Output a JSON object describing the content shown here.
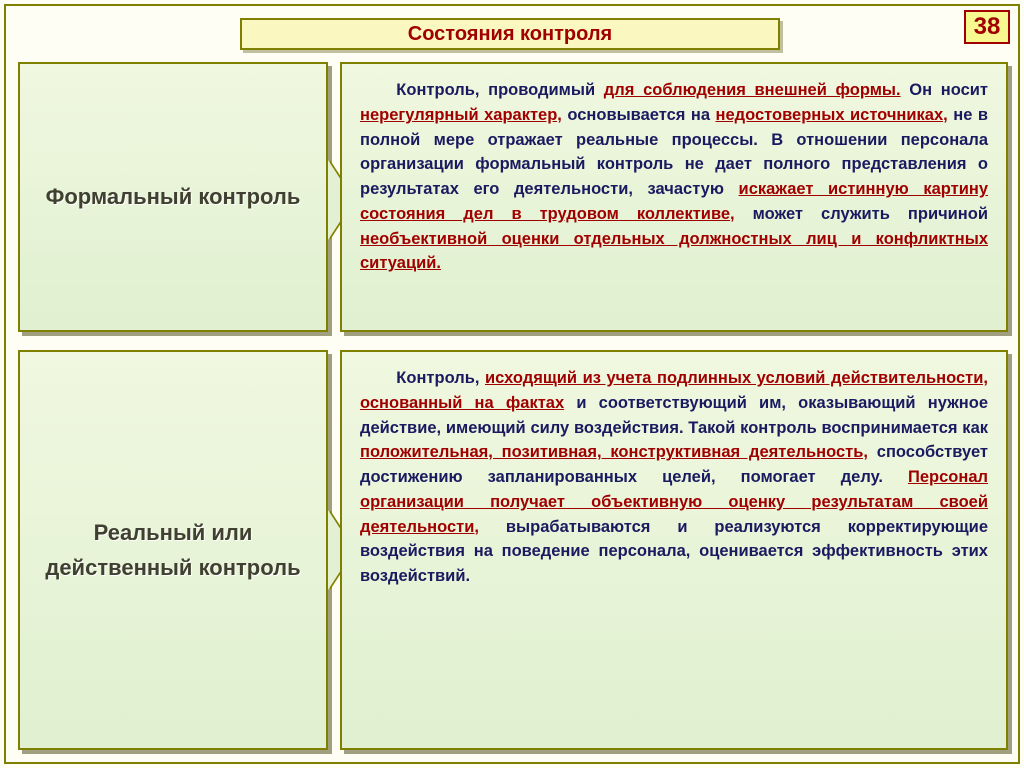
{
  "page_number": "38",
  "title": "Состояния контроля",
  "palette": {
    "background": "#fffef5",
    "border": "#808000",
    "accent_red": "#a00000",
    "body_text": "#1a1a60",
    "box_fill_light": "#f0f8e0",
    "box_fill_dark": "#e0f0d0",
    "title_fill": "#faf8c0",
    "shadow": "#a0a080"
  },
  "typography": {
    "title_fontsize": 20,
    "label_fontsize": 22,
    "body_fontsize": 16.5,
    "page_num_fontsize": 24,
    "font_family": "Arial"
  },
  "sections": [
    {
      "label": "Формальный контроль",
      "text_segments": [
        {
          "t": "Контроль, проводимый ",
          "hl": false
        },
        {
          "t": "для соблюдения внешней формы.",
          "hl": true
        },
        {
          "t": " Он носит ",
          "hl": false
        },
        {
          "t": "нерегулярный характер,",
          "hl": true
        },
        {
          "t": " основывается на ",
          "hl": false
        },
        {
          "t": "недостоверных источниках,",
          "hl": true
        },
        {
          "t": " не в полной мере отражает реальные процессы. В отношении персонала организации формальный контроль не дает полного представления о результатах его деятельности, зачастую ",
          "hl": false
        },
        {
          "t": "искажает истинную картину состояния дел в трудовом коллективе,",
          "hl": true
        },
        {
          "t": " может служить причиной ",
          "hl": false
        },
        {
          "t": "необъективной оценки отдельных должностных лиц и конфликтных ситуаций.",
          "hl": true
        }
      ],
      "indent": true
    },
    {
      "label": "Реальный или действенный контроль",
      "text_segments": [
        {
          "t": "Контроль, ",
          "hl": false
        },
        {
          "t": "исходящий из учета подлинных условий действительности, основанный на фактах",
          "hl": true
        },
        {
          "t": " и соответствующий им, оказывающий нужное действие, имеющий силу воздействия. Такой контроль воспринимается как ",
          "hl": false
        },
        {
          "t": "положительная, позитивная, конструктивная деятельность,",
          "hl": true
        },
        {
          "t": " способствует достижению запланированных целей, помогает делу. ",
          "hl": false
        },
        {
          "t": "Персонал организации получает объективную оценку результатам своей деятельности,",
          "hl": true
        },
        {
          "t": " вырабатываются и реализуются корректирующие воздействия на поведение персонала, оценивается эффективность этих воздействий.",
          "hl": false
        }
      ],
      "indent": true
    }
  ]
}
